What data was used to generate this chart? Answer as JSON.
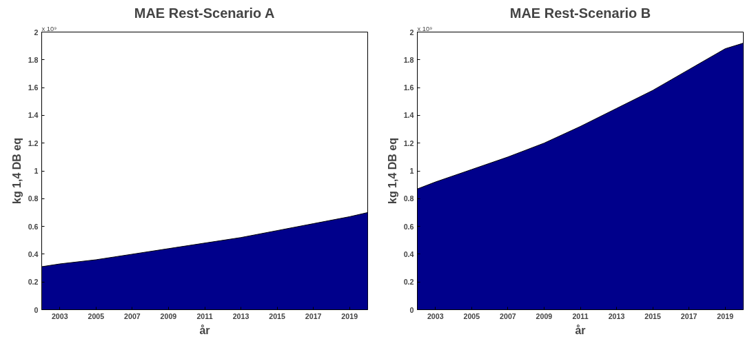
{
  "chart_data": [
    {
      "type": "area",
      "title": "MAE Rest-Scenario A",
      "xlabel": "år",
      "ylabel": "kg 1,4 DB eq",
      "annotations": [
        "x 10⁹"
      ],
      "x": [
        2002,
        2003,
        2005,
        2006,
        2007,
        2009,
        2011,
        2013,
        2015,
        2017,
        2019,
        2020
      ],
      "series": [
        {
          "color": "#00008b",
          "values": [
            0.31,
            0.33,
            0.36,
            0.38,
            0.4,
            0.44,
            0.48,
            0.52,
            0.57,
            0.62,
            0.67,
            0.7
          ]
        }
      ],
      "xlim": [
        2002,
        2020
      ],
      "xticks": [
        2003,
        2005,
        2007,
        2009,
        2011,
        2013,
        2015,
        2017,
        2019
      ],
      "ylim": [
        0,
        2
      ],
      "yticks": [
        0,
        0.2,
        0.4,
        0.6,
        0.8,
        1,
        1.2,
        1.4,
        1.6,
        1.8,
        2
      ],
      "grid": false
    },
    {
      "type": "area",
      "title": "MAE Rest-Scenario B",
      "xlabel": "år",
      "ylabel": "kg 1,4 DB eq",
      "annotations": [
        "x 10⁹"
      ],
      "x": [
        2002,
        2003,
        2005,
        2007,
        2009,
        2011,
        2013,
        2015,
        2017,
        2019,
        2020
      ],
      "series": [
        {
          "color": "#00008b",
          "values": [
            0.87,
            0.92,
            1.01,
            1.1,
            1.2,
            1.32,
            1.45,
            1.58,
            1.73,
            1.88,
            1.92
          ]
        }
      ],
      "xlim": [
        2002,
        2020
      ],
      "xticks": [
        2003,
        2005,
        2007,
        2009,
        2011,
        2013,
        2015,
        2017,
        2019
      ],
      "ylim": [
        0,
        2
      ],
      "yticks": [
        0,
        0.2,
        0.4,
        0.6,
        0.8,
        1,
        1.2,
        1.4,
        1.6,
        1.8,
        2
      ],
      "grid": false
    }
  ]
}
